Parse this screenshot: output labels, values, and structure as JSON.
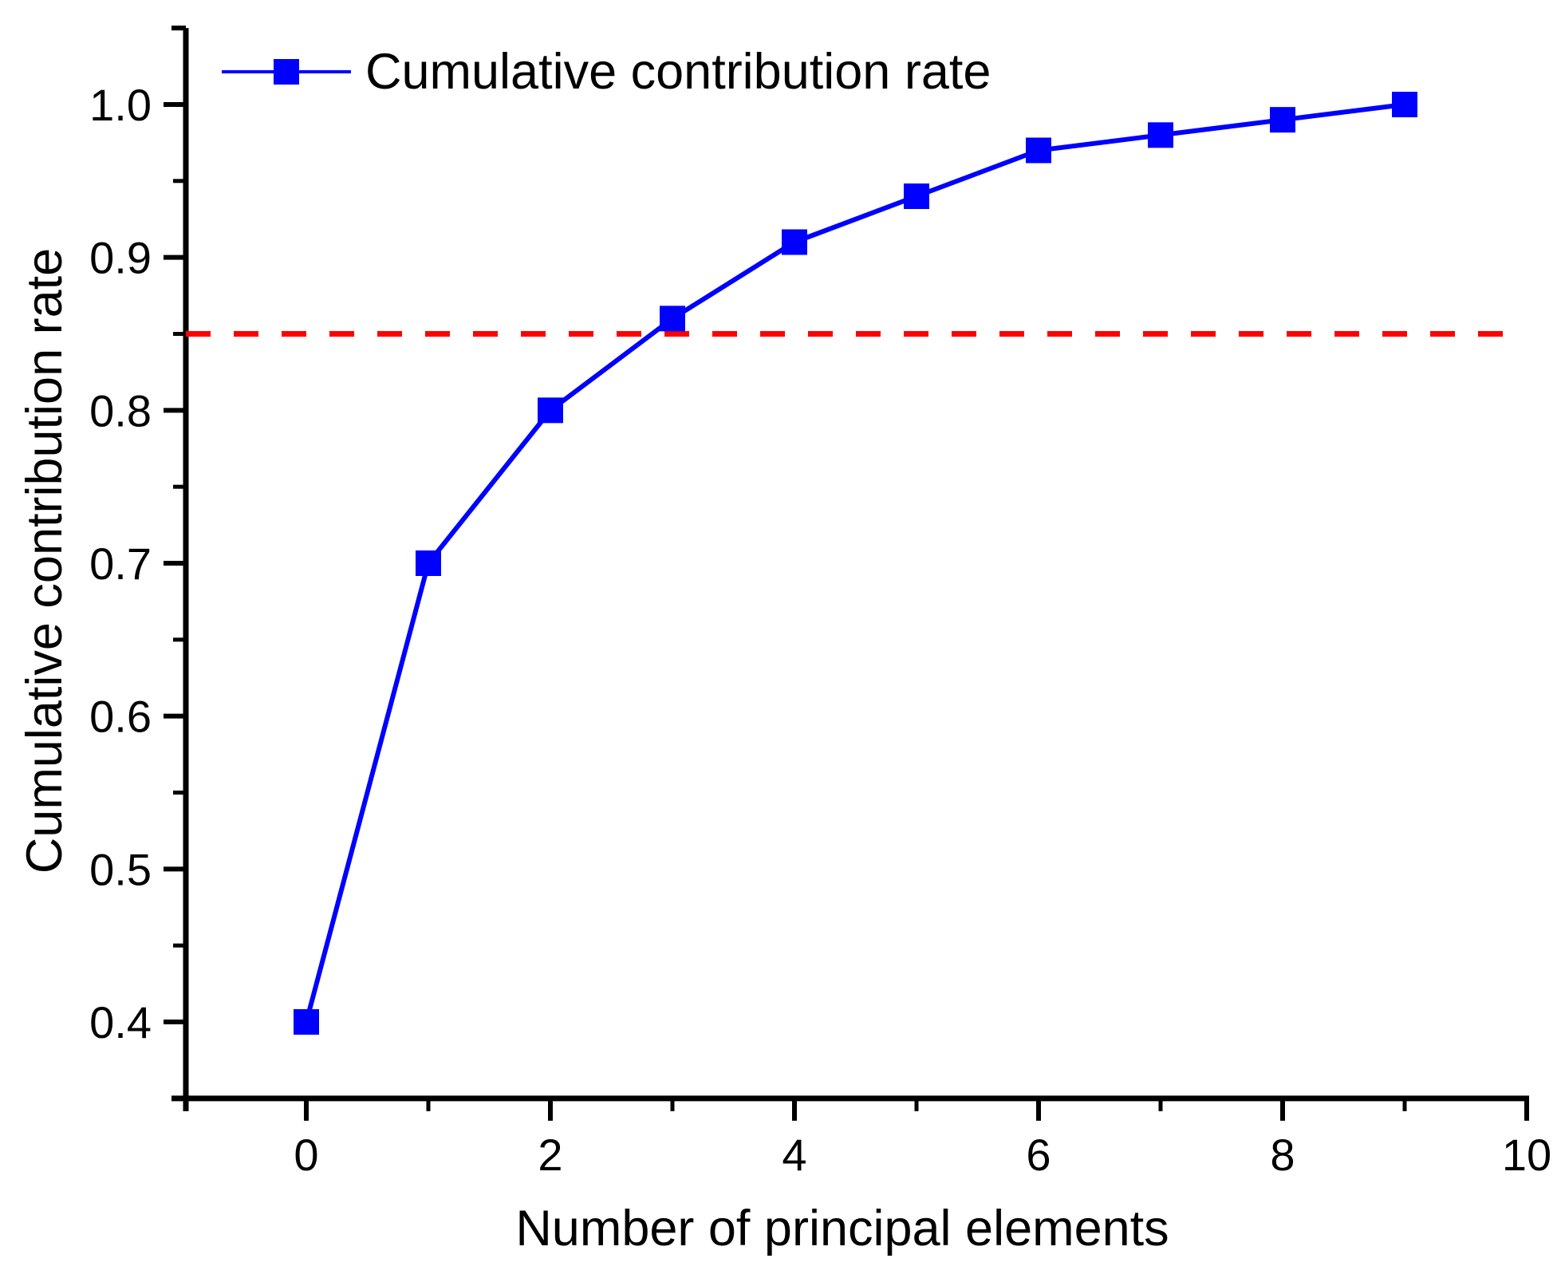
{
  "figure": {
    "background": "#FFFFFF",
    "axis_color": "#000000"
  },
  "chart_data": {
    "type": "line",
    "title": "",
    "x": [
      0,
      1,
      2,
      3,
      4,
      5,
      6,
      7,
      8,
      9
    ],
    "series": [
      {
        "name": "Cumulative contribution rate",
        "values": [
          0.4,
          0.7,
          0.8,
          0.86,
          0.91,
          0.94,
          0.97,
          0.98,
          0.99,
          1.0
        ],
        "color": "#0000FF",
        "marker": "square"
      }
    ],
    "reference_line": {
      "value": 0.85,
      "color": "#FF0000",
      "style": "dashed"
    },
    "xlabel": "Number of principal elements",
    "ylabel": "Cumulative contribution rate",
    "xlim": [
      -1,
      10
    ],
    "ylim": [
      0.35,
      1.05
    ],
    "x_major_ticks": [
      0,
      2,
      4,
      6,
      8,
      10
    ],
    "x_minor_ticks": [
      1,
      3,
      5,
      7,
      9
    ],
    "y_major_ticks": [
      0.4,
      0.5,
      0.6,
      0.7,
      0.8,
      0.9,
      1.0
    ],
    "y_minor_ticks": [
      0.45,
      0.55,
      0.65,
      0.75,
      0.85,
      0.95,
      1.05
    ],
    "legend": {
      "position": "top-left"
    },
    "grid": false
  }
}
